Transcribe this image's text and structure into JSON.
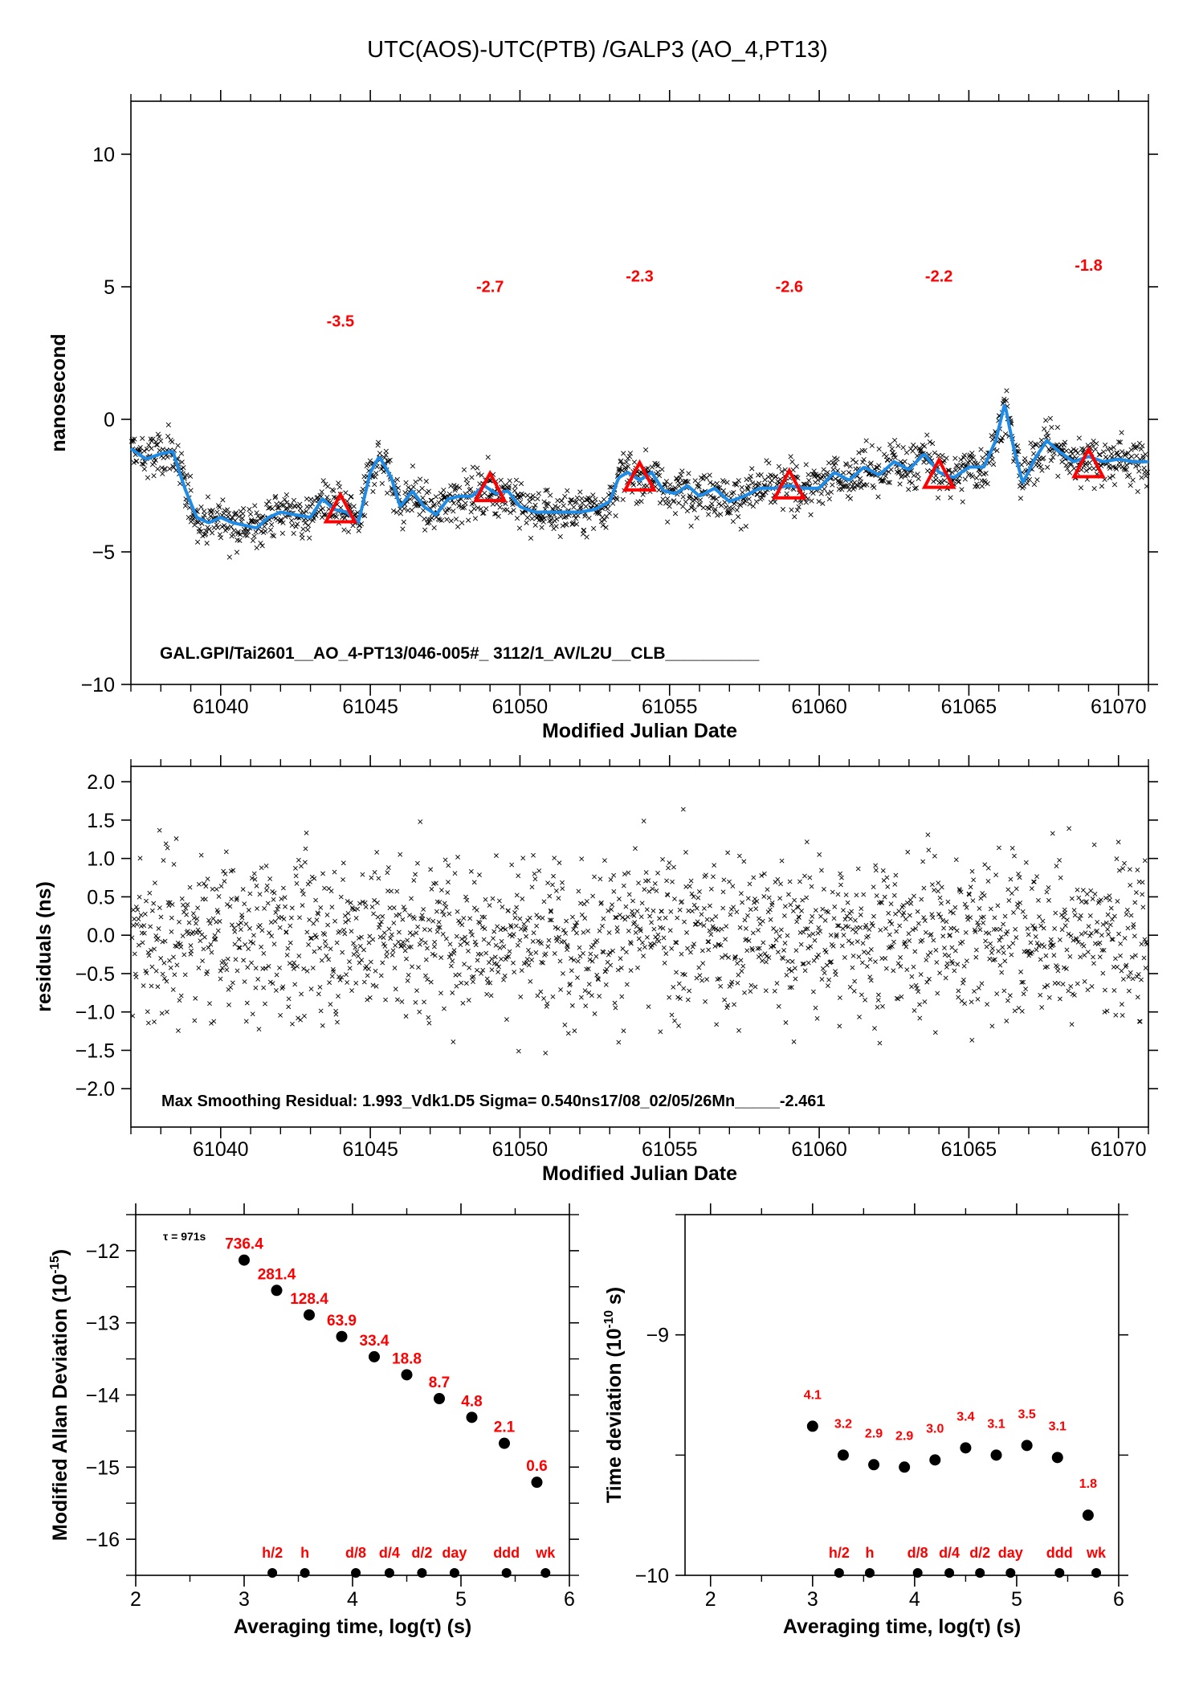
{
  "figure_title": "UTC(AOS)-UTC(PTB)  /GALP3  (AO_4,PT13)",
  "colors": {
    "points": "#000000",
    "smooth_line": "#1e8ce6",
    "annotation": "#ff0000",
    "axes": "#000000"
  },
  "chart_data": [
    {
      "id": "time-series",
      "type": "scatter",
      "title": "UTC(AOS)-UTC(PTB)  /GALP3  (AO_4,PT13)",
      "xlabel": "Modified Julian Date",
      "ylabel": "nanosecond",
      "xlim": [
        61037,
        61071
      ],
      "ylim": [
        -10,
        12
      ],
      "xticks": [
        61040,
        61045,
        61050,
        61055,
        61060,
        61065,
        61070
      ],
      "xtick_labels": [
        "61040",
        "61045",
        "61050",
        "61055",
        "61060",
        "61065",
        "61070"
      ],
      "yticks": [
        -10,
        -5,
        0,
        5,
        10
      ],
      "ytick_labels": [
        "−10",
        "−5",
        "0",
        "5",
        "10"
      ],
      "grid": false,
      "footer_text": "GAL.GPI/Tai2601__AO_4-PT13/046-005#_  3112/1_AV/L2U__CLB__________",
      "smooth_series": {
        "name": "smoothed",
        "x": [
          61037.0,
          61037.5,
          61038.0,
          61038.4,
          61038.8,
          61039.2,
          61039.6,
          61040.0,
          61040.4,
          61040.8,
          61041.2,
          61041.6,
          61042.0,
          61042.5,
          61043.0,
          61043.4,
          61043.8,
          61044.2,
          61044.6,
          61045.0,
          61045.3,
          61045.7,
          61046.0,
          61046.4,
          61046.8,
          61047.2,
          61047.6,
          61048.0,
          61048.4,
          61048.8,
          61049.2,
          61049.6,
          61050.0,
          61050.5,
          61051.0,
          61051.5,
          61052.0,
          61052.5,
          61053.0,
          61053.3,
          61053.6,
          61054.0,
          61054.4,
          61054.8,
          61055.2,
          61055.6,
          61056.0,
          61056.5,
          61057.0,
          61057.5,
          61058.0,
          61058.5,
          61059.0,
          61059.5,
          61060.0,
          61060.5,
          61061.0,
          61061.5,
          61062.0,
          61062.5,
          61063.0,
          61063.5,
          61064.0,
          61064.5,
          61065.0,
          61065.5,
          61065.9,
          61066.2,
          61066.5,
          61066.8,
          61067.2,
          61067.6,
          61068.0,
          61068.5,
          61069.0,
          61069.5,
          61070.0,
          61070.5,
          61071.0
        ],
        "y": [
          -1.1,
          -1.5,
          -1.3,
          -1.2,
          -2.6,
          -3.7,
          -3.9,
          -3.7,
          -3.9,
          -4.0,
          -4.1,
          -3.7,
          -3.5,
          -3.6,
          -3.7,
          -3.0,
          -3.4,
          -3.5,
          -3.9,
          -2.0,
          -1.4,
          -2.2,
          -3.3,
          -2.7,
          -3.3,
          -3.6,
          -3.0,
          -2.9,
          -2.9,
          -2.5,
          -2.8,
          -2.7,
          -3.3,
          -3.5,
          -3.5,
          -3.5,
          -3.5,
          -3.4,
          -3.1,
          -2.2,
          -2.0,
          -2.3,
          -2.0,
          -2.7,
          -2.8,
          -2.5,
          -2.9,
          -2.6,
          -3.1,
          -2.9,
          -2.6,
          -2.6,
          -2.5,
          -2.6,
          -2.6,
          -2.0,
          -2.3,
          -1.8,
          -2.1,
          -1.6,
          -1.9,
          -1.3,
          -2.0,
          -2.2,
          -1.8,
          -1.8,
          -0.8,
          0.6,
          -1.1,
          -2.4,
          -1.5,
          -0.8,
          -1.2,
          -1.6,
          -1.4,
          -1.6,
          -1.5,
          -1.6,
          -1.6
        ]
      },
      "scatter_series": {
        "name": "measurements",
        "marker": "x",
        "approx_count": 3300,
        "spread_ns": 0.55
      },
      "triangle_markers": {
        "x": [
          61044,
          61049,
          61054,
          61059,
          61064,
          61069
        ],
        "y": [
          -3.5,
          -2.7,
          -2.3,
          -2.6,
          -2.2,
          -1.8
        ],
        "labels": [
          "-3.5",
          "-2.7",
          "-2.3",
          "-2.6",
          "-2.2",
          "-1.8"
        ],
        "label_y": [
          3.5,
          4.8,
          5.2,
          4.8,
          5.2,
          5.6
        ]
      }
    },
    {
      "id": "residuals",
      "type": "scatter",
      "xlabel": "Modified Julian Date",
      "ylabel": "residuals (ns)",
      "xlim": [
        61037,
        61071
      ],
      "ylim": [
        -2.5,
        2.2
      ],
      "xticks": [
        61040,
        61045,
        61050,
        61055,
        61060,
        61065,
        61070
      ],
      "xtick_labels": [
        "61040",
        "61045",
        "61050",
        "61055",
        "61060",
        "61065",
        "61070"
      ],
      "yticks": [
        -2.0,
        -1.5,
        -1.0,
        -0.5,
        0.0,
        0.5,
        1.0,
        1.5,
        2.0
      ],
      "ytick_labels": [
        "−2.0",
        "−1.5",
        "−1.0",
        "−0.5",
        "0.0",
        "0.5",
        "1.0",
        "1.5",
        "2.0"
      ],
      "grid": false,
      "footer_text": "Max Smoothing Residual: 1.993_Vdk1.D5  Sigma= 0.540ns17/08_02/05/26Mn_____-2.461",
      "max_residual": 1.993,
      "sigma_ns": 0.54,
      "scatter_series": {
        "name": "residuals",
        "marker": "x",
        "approx_count": 3300
      }
    },
    {
      "id": "modified-allan-deviation",
      "type": "scatter",
      "xlabel": "Averaging time, log(τ) (s)",
      "ylabel": "Modified Allan Deviation (10",
      "ylabel_sup": "-15",
      "ylabel_end": ")",
      "xlim": [
        2,
        6
      ],
      "ylim": [
        -16.5,
        -11.5
      ],
      "xticks": [
        2,
        3,
        4,
        5,
        6
      ],
      "xtick_labels": [
        "2",
        "3",
        "4",
        "5",
        "6"
      ],
      "yticks": [
        -16,
        -15,
        -14,
        -13,
        -12
      ],
      "ytick_labels": [
        "−16",
        "−15",
        "−14",
        "−13",
        "−12"
      ],
      "annotation": "τ = 971s",
      "x": [
        3.0,
        3.3,
        3.6,
        3.9,
        4.2,
        4.5,
        4.8,
        5.1,
        5.4,
        5.7
      ],
      "y": [
        -12.13,
        -12.55,
        -12.89,
        -13.19,
        -13.47,
        -13.72,
        -14.05,
        -14.31,
        -14.67,
        -15.21
      ],
      "labels": [
        "736.4",
        "281.4",
        "128.4",
        "63.9",
        "33.4",
        "18.8",
        "8.7",
        "4.8",
        "2.1",
        "0.6"
      ],
      "time_markers": {
        "x": [
          3.26,
          3.56,
          4.03,
          4.34,
          4.64,
          4.94,
          5.42,
          5.78
        ],
        "labels": [
          "h/2",
          "h",
          "d/8",
          "d/4",
          "d/2",
          "day",
          "ddd",
          "wk"
        ]
      }
    },
    {
      "id": "time-deviation",
      "type": "scatter",
      "xlabel": "Averaging time, log(τ) (s)",
      "ylabel": "Time deviation (10",
      "ylabel_sup": "-10",
      "ylabel_end": " s)",
      "xlim": [
        1.75,
        6
      ],
      "ylim": [
        -10,
        -8.5
      ],
      "xticks": [
        2,
        3,
        4,
        5,
        6
      ],
      "xtick_labels": [
        "2",
        "3",
        "4",
        "5",
        "6"
      ],
      "yticks": [
        -10,
        -9
      ],
      "ytick_labels": [
        "−10",
        "−9"
      ],
      "x": [
        3.0,
        3.3,
        3.6,
        3.9,
        4.2,
        4.5,
        4.8,
        5.1,
        5.4,
        5.7
      ],
      "y": [
        -9.38,
        -9.5,
        -9.54,
        -9.55,
        -9.52,
        -9.47,
        -9.5,
        -9.46,
        -9.51,
        -9.75
      ],
      "labels": [
        "4.1",
        "3.2",
        "2.9",
        "2.9",
        "3.0",
        "3.4",
        "3.1",
        "3.5",
        "3.1",
        "1.8"
      ],
      "time_markers": {
        "x": [
          3.26,
          3.56,
          4.03,
          4.34,
          4.64,
          4.94,
          5.42,
          5.78
        ],
        "labels": [
          "h/2",
          "h",
          "d/8",
          "d/4",
          "d/2",
          "day",
          "ddd",
          "wk"
        ]
      }
    }
  ]
}
